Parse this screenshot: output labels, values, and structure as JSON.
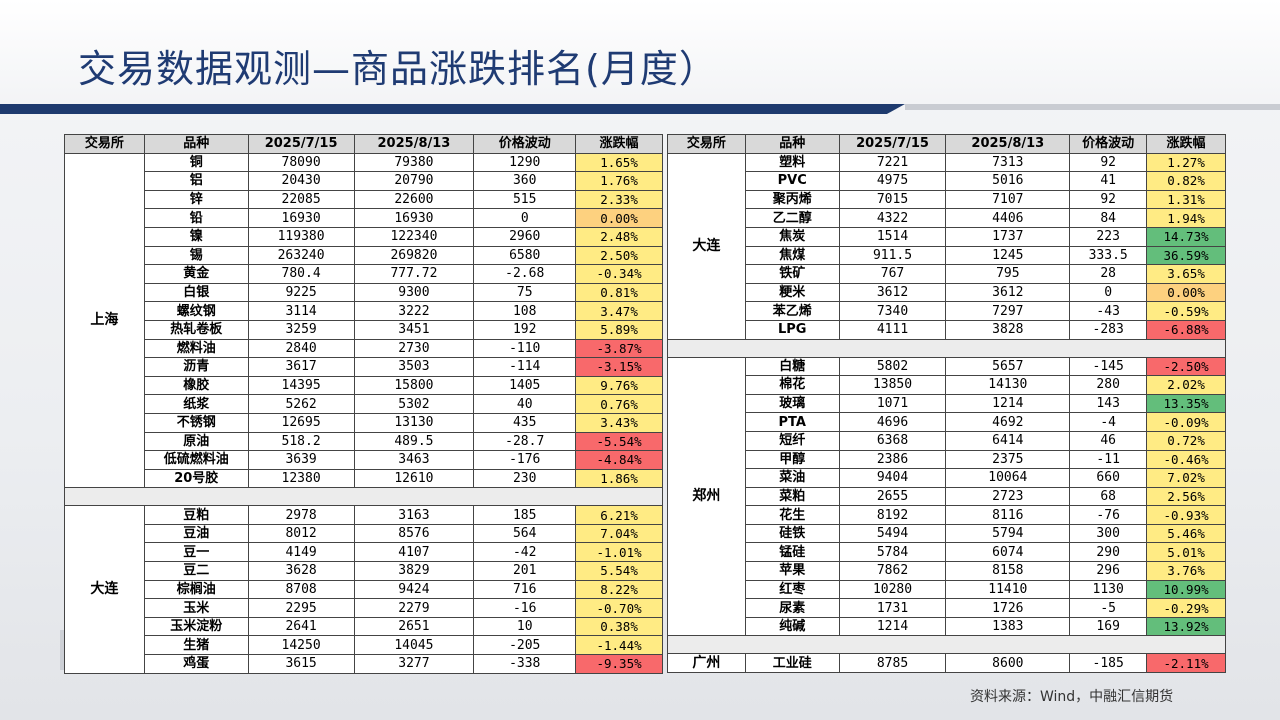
{
  "title": "交易数据观测—商品涨跌排名(月度）",
  "source": "资料来源：Wind，中融汇信期货",
  "colors": {
    "up_strong": "#63be7b",
    "up": "#ffeb84",
    "flat": "#fdd17f",
    "down": "#f8696b"
  },
  "headers": [
    "交易所",
    "品种",
    "2025/7/15",
    "2025/8/13",
    "价格波动",
    "涨跌幅"
  ],
  "left": {
    "groups": [
      {
        "exchange": "上海",
        "rows": [
          [
            "铜",
            "78090",
            "79380",
            "1290",
            "1.65%"
          ],
          [
            "铝",
            "20430",
            "20790",
            "360",
            "1.76%"
          ],
          [
            "锌",
            "22085",
            "22600",
            "515",
            "2.33%"
          ],
          [
            "铅",
            "16930",
            "16930",
            "0",
            "0.00%"
          ],
          [
            "镍",
            "119380",
            "122340",
            "2960",
            "2.48%"
          ],
          [
            "锡",
            "263240",
            "269820",
            "6580",
            "2.50%"
          ],
          [
            "黄金",
            "780.4",
            "777.72",
            "-2.68",
            "-0.34%"
          ],
          [
            "白银",
            "9225",
            "9300",
            "75",
            "0.81%"
          ],
          [
            "螺纹钢",
            "3114",
            "3222",
            "108",
            "3.47%"
          ],
          [
            "热轧卷板",
            "3259",
            "3451",
            "192",
            "5.89%"
          ],
          [
            "燃料油",
            "2840",
            "2730",
            "-110",
            "-3.87%"
          ],
          [
            "沥青",
            "3617",
            "3503",
            "-114",
            "-3.15%"
          ],
          [
            "橡胶",
            "14395",
            "15800",
            "1405",
            "9.76%"
          ],
          [
            "纸浆",
            "5262",
            "5302",
            "40",
            "0.76%"
          ],
          [
            "不锈钢",
            "12695",
            "13130",
            "435",
            "3.43%"
          ],
          [
            "原油",
            "518.2",
            "489.5",
            "-28.7",
            "-5.54%"
          ],
          [
            "低硫燃料油",
            "3639",
            "3463",
            "-176",
            "-4.84%"
          ],
          [
            "20号胶",
            "12380",
            "12610",
            "230",
            "1.86%"
          ]
        ]
      },
      {
        "exchange": "大连",
        "rows": [
          [
            "豆粕",
            "2978",
            "3163",
            "185",
            "6.21%"
          ],
          [
            "豆油",
            "8012",
            "8576",
            "564",
            "7.04%"
          ],
          [
            "豆一",
            "4149",
            "4107",
            "-42",
            "-1.01%"
          ],
          [
            "豆二",
            "3628",
            "3829",
            "201",
            "5.54%"
          ],
          [
            "棕榈油",
            "8708",
            "9424",
            "716",
            "8.22%"
          ],
          [
            "玉米",
            "2295",
            "2279",
            "-16",
            "-0.70%"
          ],
          [
            "玉米淀粉",
            "2641",
            "2651",
            "10",
            "0.38%"
          ],
          [
            "生猪",
            "14250",
            "14045",
            "-205",
            "-1.44%"
          ],
          [
            "鸡蛋",
            "3615",
            "3277",
            "-338",
            "-9.35%"
          ]
        ]
      }
    ]
  },
  "right": {
    "groups": [
      {
        "exchange": "大连",
        "rows": [
          [
            "塑料",
            "7221",
            "7313",
            "92",
            "1.27%"
          ],
          [
            "PVC",
            "4975",
            "5016",
            "41",
            "0.82%"
          ],
          [
            "聚丙烯",
            "7015",
            "7107",
            "92",
            "1.31%"
          ],
          [
            "乙二醇",
            "4322",
            "4406",
            "84",
            "1.94%"
          ],
          [
            "焦炭",
            "1514",
            "1737",
            "223",
            "14.73%"
          ],
          [
            "焦煤",
            "911.5",
            "1245",
            "333.5",
            "36.59%"
          ],
          [
            "铁矿",
            "767",
            "795",
            "28",
            "3.65%"
          ],
          [
            "粳米",
            "3612",
            "3612",
            "0",
            "0.00%"
          ],
          [
            "苯乙烯",
            "7340",
            "7297",
            "-43",
            "-0.59%"
          ],
          [
            "LPG",
            "4111",
            "3828",
            "-283",
            "-6.88%"
          ]
        ]
      },
      {
        "exchange": "郑州",
        "rows": [
          [
            "白糖",
            "5802",
            "5657",
            "-145",
            "-2.50%"
          ],
          [
            "棉花",
            "13850",
            "14130",
            "280",
            "2.02%"
          ],
          [
            "玻璃",
            "1071",
            "1214",
            "143",
            "13.35%"
          ],
          [
            "PTA",
            "4696",
            "4692",
            "-4",
            "-0.09%"
          ],
          [
            "短纤",
            "6368",
            "6414",
            "46",
            "0.72%"
          ],
          [
            "甲醇",
            "2386",
            "2375",
            "-11",
            "-0.46%"
          ],
          [
            "菜油",
            "9404",
            "10064",
            "660",
            "7.02%"
          ],
          [
            "菜粕",
            "2655",
            "2723",
            "68",
            "2.56%"
          ],
          [
            "花生",
            "8192",
            "8116",
            "-76",
            "-0.93%"
          ],
          [
            "硅铁",
            "5494",
            "5794",
            "300",
            "5.46%"
          ],
          [
            "锰硅",
            "5784",
            "6074",
            "290",
            "5.01%"
          ],
          [
            "苹果",
            "7862",
            "8158",
            "296",
            "3.76%"
          ],
          [
            "红枣",
            "10280",
            "11410",
            "1130",
            "10.99%"
          ],
          [
            "尿素",
            "1731",
            "1726",
            "-5",
            "-0.29%"
          ],
          [
            "纯碱",
            "1214",
            "1383",
            "169",
            "13.92%"
          ]
        ]
      },
      {
        "exchange": "广州",
        "rows": [
          [
            "工业硅",
            "8785",
            "8600",
            "-185",
            "-2.11%"
          ]
        ]
      }
    ]
  }
}
